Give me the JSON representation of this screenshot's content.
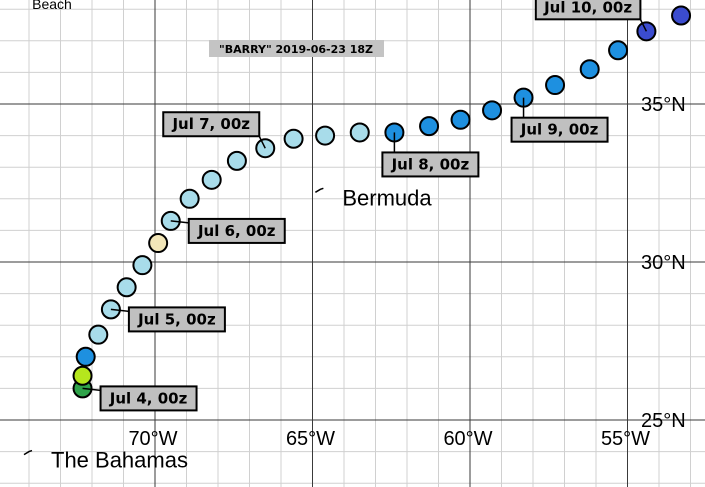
{
  "map": {
    "title": "\"BARRY\" 2019-06-23 18Z",
    "lon_ticks": [
      {
        "lon": -70,
        "label": "70°W"
      },
      {
        "lon": -65,
        "label": "65°W"
      },
      {
        "lon": -60,
        "label": "60°W"
      },
      {
        "lon": -55,
        "label": "55°W"
      }
    ],
    "lat_ticks": [
      {
        "lat": 25,
        "label": "25°N"
      },
      {
        "lat": 30,
        "label": "30°N"
      },
      {
        "lat": 35,
        "label": "35°N"
      }
    ],
    "places": [
      {
        "name": "Beach",
        "lon": -73.9,
        "lat": 38.2,
        "size": "small",
        "dot": false
      },
      {
        "name": "Bermuda",
        "lon": -64.75,
        "lat": 32.3,
        "size": "large",
        "dot": true
      },
      {
        "name": "The Bahamas",
        "lon": -74.0,
        "lat": 24.0,
        "size": "large",
        "dot": true
      }
    ],
    "colors": {
      "grid_major": "#3a3a3a",
      "grid_minor": "#d0d0d0",
      "label_box": "#c0c0c0",
      "title_box": "#c4c4c4"
    }
  },
  "chart_data": {
    "type": "track",
    "storm": "BARRY",
    "title": "\"BARRY\" 2019-06-23 18Z",
    "points": [
      {
        "lon": -72.3,
        "lat": 26.0,
        "color": "#2fa34a"
      },
      {
        "lon": -72.3,
        "lat": 26.4,
        "color": "#b5e61d"
      },
      {
        "lon": -72.2,
        "lat": 27.0,
        "color": "#1e90e0"
      },
      {
        "lon": -71.8,
        "lat": 27.7,
        "color": "#a8dcea"
      },
      {
        "lon": -71.4,
        "lat": 28.5,
        "color": "#a8dcea"
      },
      {
        "lon": -70.9,
        "lat": 29.2,
        "color": "#a8dcea"
      },
      {
        "lon": -70.4,
        "lat": 29.9,
        "color": "#a8dcea"
      },
      {
        "lon": -69.9,
        "lat": 30.6,
        "color": "#f2e6b8"
      },
      {
        "lon": -69.5,
        "lat": 31.3,
        "color": "#a8dcea"
      },
      {
        "lon": -68.9,
        "lat": 32.0,
        "color": "#a8dcea"
      },
      {
        "lon": -68.2,
        "lat": 32.6,
        "color": "#a8dcea"
      },
      {
        "lon": -67.4,
        "lat": 33.2,
        "color": "#a8dcea"
      },
      {
        "lon": -66.5,
        "lat": 33.6,
        "color": "#a8dcea"
      },
      {
        "lon": -65.6,
        "lat": 33.9,
        "color": "#a8dcea"
      },
      {
        "lon": -64.6,
        "lat": 34.0,
        "color": "#a8dcea"
      },
      {
        "lon": -63.5,
        "lat": 34.1,
        "color": "#a8dcea"
      },
      {
        "lon": -62.4,
        "lat": 34.1,
        "color": "#1e90e0"
      },
      {
        "lon": -61.3,
        "lat": 34.3,
        "color": "#1e90e0"
      },
      {
        "lon": -60.3,
        "lat": 34.5,
        "color": "#1e90e0"
      },
      {
        "lon": -59.3,
        "lat": 34.8,
        "color": "#1e90e0"
      },
      {
        "lon": -58.3,
        "lat": 35.2,
        "color": "#1e90e0"
      },
      {
        "lon": -57.3,
        "lat": 35.6,
        "color": "#1e90e0"
      },
      {
        "lon": -56.2,
        "lat": 36.1,
        "color": "#1e90e0"
      },
      {
        "lon": -55.3,
        "lat": 36.7,
        "color": "#1e90e0"
      },
      {
        "lon": -54.4,
        "lat": 37.3,
        "color": "#3b4ccf"
      },
      {
        "lon": -53.3,
        "lat": 37.8,
        "color": "#3b4ccf"
      }
    ],
    "date_labels": [
      {
        "text": "Jul 4, 00z",
        "point": 0,
        "side": "right"
      },
      {
        "text": "Jul 5, 00z",
        "point": 4,
        "side": "right"
      },
      {
        "text": "Jul 6, 00z",
        "point": 8,
        "side": "right"
      },
      {
        "text": "Jul 7, 00z",
        "point": 12,
        "side": "left"
      },
      {
        "text": "Jul 8, 00z",
        "point": 16,
        "side": "below"
      },
      {
        "text": "Jul 9, 00z",
        "point": 20,
        "side": "below"
      },
      {
        "text": "Jul 10, 00z",
        "point": 24,
        "side": "left"
      }
    ]
  }
}
